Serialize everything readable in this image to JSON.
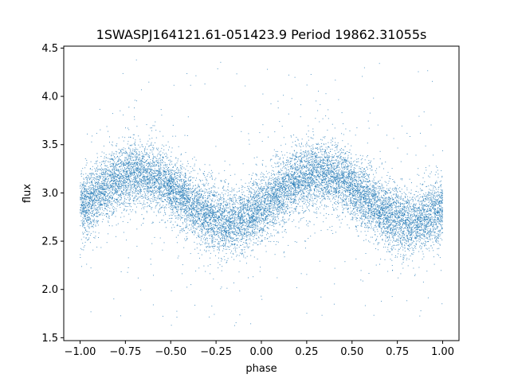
{
  "chart_data": {
    "type": "scatter",
    "title": "1SWASPJ164121.61-051423.9 Period 19862.31055s",
    "xlabel": "phase",
    "ylabel": "flux",
    "xlim": [
      -1.09,
      1.09
    ],
    "ylim": [
      1.47,
      4.52
    ],
    "x_ticks": [
      -1.0,
      -0.75,
      -0.5,
      -0.25,
      0.0,
      0.25,
      0.5,
      0.75,
      1.0
    ],
    "x_tick_labels": [
      "−1.00",
      "−0.75",
      "−0.50",
      "−0.25",
      "0.00",
      "0.25",
      "0.50",
      "0.75",
      "1.00"
    ],
    "y_ticks": [
      1.5,
      2.0,
      2.5,
      3.0,
      3.5,
      4.0,
      4.5
    ],
    "y_tick_labels": [
      "1.5",
      "2.0",
      "2.5",
      "3.0",
      "3.5",
      "4.0",
      "4.5"
    ],
    "grid": false,
    "point_color": "#1f77b4",
    "series": [
      {
        "model": "sinusoid",
        "x_range": [
          -1.0,
          1.0
        ],
        "mean_flux": 2.95,
        "amplitude": 0.25,
        "peak_phase": 0.32,
        "scatter_sigma": 0.16,
        "outlier_low": 1.62,
        "outlier_high": 4.38,
        "approx_point_count": 14000
      }
    ]
  }
}
